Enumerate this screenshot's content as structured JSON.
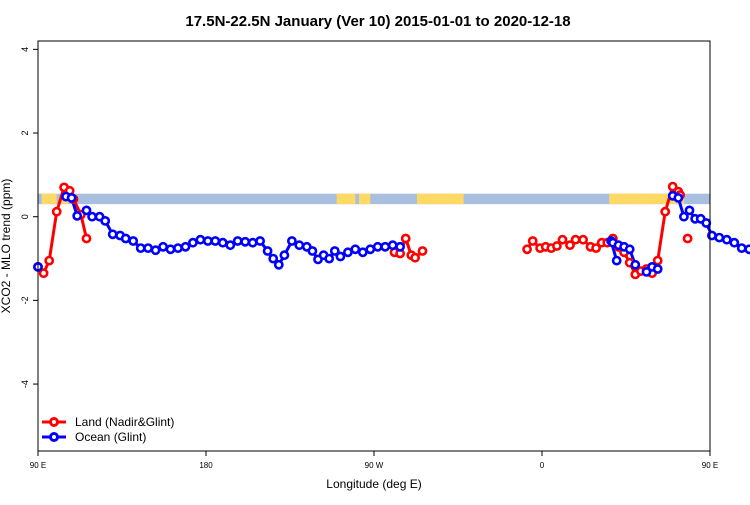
{
  "chart_data": {
    "type": "line",
    "title": "17.5N-22.5N January (Ver 10)   2015-01-01 to 2020-12-18",
    "xlabel": "Longitude (deg E)",
    "ylabel": "XCO2 - MLO trend (ppm)",
    "xlim": [
      90,
      450
    ],
    "ylim": [
      -5.6,
      4.2
    ],
    "xticks": [
      {
        "value": 90,
        "label": "90 E"
      },
      {
        "value": 180,
        "label": "180"
      },
      {
        "value": 270,
        "label": "90 W"
      },
      {
        "value": 360,
        "label": "0"
      },
      {
        "value": 450,
        "label": "90 E"
      },
      {
        "value": 540,
        "label": "180"
      }
    ],
    "yticks": [
      {
        "value": 4,
        "label": "4"
      },
      {
        "value": 2,
        "label": "2"
      },
      {
        "value": 0,
        "label": "0"
      },
      {
        "value": -2,
        "label": "-2"
      },
      {
        "value": -4,
        "label": "-4"
      }
    ],
    "legend_position": "bottom-left",
    "colors": {
      "land": "#ff0000",
      "ocean": "#0000ff",
      "surface_land": "#ffd966",
      "surface_ocean": "#a9bfe0"
    },
    "surface_strip": {
      "y_range": [
        0.3,
        0.55
      ],
      "land_segments": [
        [
          92,
          100
        ],
        [
          102,
          106
        ],
        [
          250,
          260
        ],
        [
          262,
          268
        ],
        [
          293,
          312
        ],
        [
          308,
          318
        ],
        [
          396,
          416
        ],
        [
          406,
          436
        ],
        [
          450,
          458
        ]
      ]
    },
    "series": [
      {
        "name": "Land (Nadir&Glint)",
        "color": "#ff0000",
        "segments": [
          [
            [
              90,
              -1.2
            ],
            [
              93,
              -1.35
            ],
            [
              96,
              -1.05
            ],
            [
              100,
              0.12
            ],
            [
              104,
              0.7
            ],
            [
              107,
              0.62
            ],
            [
              109,
              0.42
            ],
            [
              113,
              0.05
            ],
            [
              116,
              -0.52
            ]
          ],
          [
            [
              281,
              -0.85
            ],
            [
              284,
              -0.88
            ],
            [
              287,
              -0.52
            ],
            [
              290,
              -0.92
            ],
            [
              292,
              -0.98
            ],
            [
              296,
              -0.82
            ]
          ],
          [
            [
              352,
              -0.78
            ],
            [
              355,
              -0.58
            ],
            [
              359,
              -0.75
            ],
            [
              362,
              -0.72
            ],
            [
              365,
              -0.75
            ],
            [
              368,
              -0.7
            ],
            [
              371,
              -0.55
            ],
            [
              375,
              -0.68
            ],
            [
              378,
              -0.55
            ],
            [
              382,
              -0.55
            ],
            [
              386,
              -0.72
            ],
            [
              389,
              -0.75
            ],
            [
              392,
              -0.62
            ],
            [
              395,
              -0.62
            ],
            [
              398,
              -0.52
            ],
            [
              401,
              -0.72
            ],
            [
              404,
              -0.85
            ],
            [
              407,
              -1.1
            ],
            [
              410,
              -1.38
            ],
            [
              413,
              -1.3
            ],
            [
              416,
              -1.25
            ],
            [
              419,
              -1.35
            ],
            [
              422,
              -1.05
            ],
            [
              426,
              0.12
            ],
            [
              430,
              0.72
            ],
            [
              433,
              0.6
            ],
            [
              434,
              0.52
            ]
          ],
          [
            [
              438,
              -0.52
            ]
          ]
        ]
      },
      {
        "name": "Ocean (Glint)",
        "color": "#0000ff",
        "segments": [
          [
            [
              90,
              -1.2
            ]
          ],
          [
            [
              105,
              0.48
            ],
            [
              108,
              0.45
            ],
            [
              111,
              0.02
            ],
            [
              116,
              0.15
            ],
            [
              119,
              0.0
            ],
            [
              123,
              0.0
            ],
            [
              126,
              -0.1
            ],
            [
              130,
              -0.42
            ],
            [
              134,
              -0.45
            ],
            [
              137,
              -0.52
            ],
            [
              141,
              -0.58
            ],
            [
              145,
              -0.75
            ],
            [
              149,
              -0.75
            ],
            [
              153,
              -0.8
            ],
            [
              157,
              -0.72
            ],
            [
              161,
              -0.78
            ],
            [
              165,
              -0.75
            ],
            [
              169,
              -0.72
            ],
            [
              173,
              -0.62
            ],
            [
              177,
              -0.55
            ],
            [
              181,
              -0.58
            ],
            [
              185,
              -0.58
            ],
            [
              189,
              -0.62
            ],
            [
              193,
              -0.68
            ],
            [
              197,
              -0.58
            ],
            [
              201,
              -0.6
            ],
            [
              205,
              -0.62
            ],
            [
              209,
              -0.58
            ],
            [
              213,
              -0.82
            ],
            [
              216,
              -1.0
            ],
            [
              219,
              -1.15
            ],
            [
              222,
              -0.92
            ],
            [
              226,
              -0.58
            ],
            [
              230,
              -0.68
            ],
            [
              234,
              -0.72
            ],
            [
              237,
              -0.82
            ],
            [
              240,
              -1.02
            ],
            [
              243,
              -0.92
            ],
            [
              246,
              -1.0
            ],
            [
              249,
              -0.82
            ],
            [
              252,
              -0.95
            ],
            [
              256,
              -0.85
            ],
            [
              260,
              -0.78
            ],
            [
              264,
              -0.85
            ],
            [
              268,
              -0.78
            ],
            [
              272,
              -0.72
            ],
            [
              276,
              -0.72
            ],
            [
              280,
              -0.68
            ],
            [
              284,
              -0.72
            ]
          ],
          [
            [
              397,
              -0.58
            ],
            [
              400,
              -1.05
            ]
          ],
          [
            [
              398,
              -0.62
            ],
            [
              401,
              -0.68
            ],
            [
              404,
              -0.72
            ],
            [
              407,
              -0.78
            ],
            [
              410,
              -1.15
            ]
          ],
          [
            [
              416,
              -1.32
            ],
            [
              419,
              -1.2
            ],
            [
              422,
              -1.25
            ]
          ],
          [
            [
              430,
              0.5
            ],
            [
              433,
              0.45
            ],
            [
              436,
              0.0
            ],
            [
              439,
              0.15
            ],
            [
              442,
              -0.05
            ],
            [
              445,
              -0.05
            ],
            [
              448,
              -0.15
            ],
            [
              451,
              -0.45
            ],
            [
              455,
              -0.5
            ],
            [
              459,
              -0.55
            ],
            [
              463,
              -0.62
            ],
            [
              467,
              -0.75
            ],
            [
              471,
              -0.78
            ],
            [
              475,
              -0.8
            ],
            [
              478,
              -0.75
            ]
          ]
        ]
      }
    ]
  }
}
